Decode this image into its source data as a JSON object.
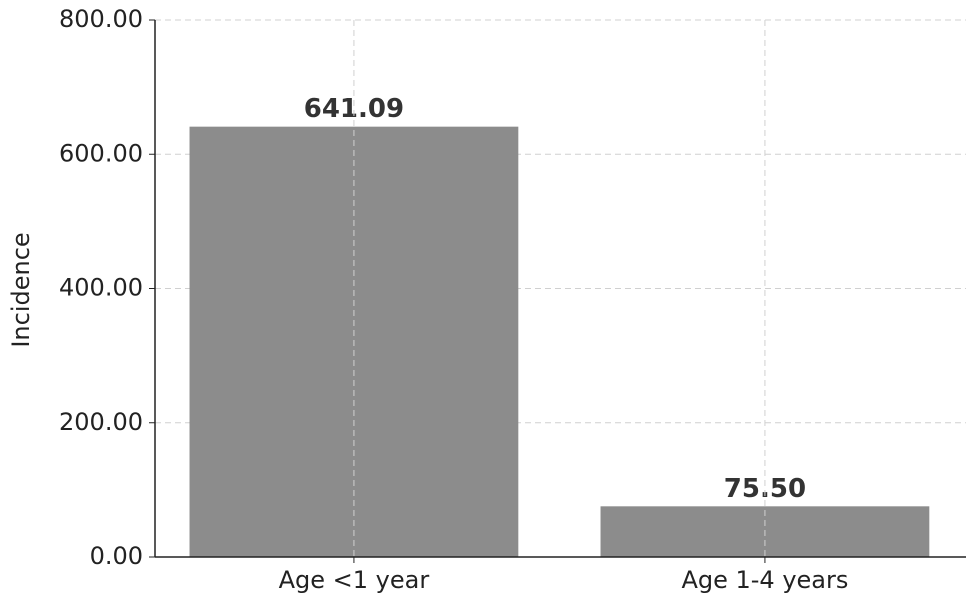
{
  "chart_data": {
    "type": "bar",
    "y_label": "Incidence",
    "categories": [
      "Age <1 year",
      "Age 1-4 years"
    ],
    "values": [
      641.09,
      75.5
    ],
    "value_labels": [
      "641.09",
      "75.50"
    ],
    "color": "#8c8c8c",
    "ylim": [
      0,
      800
    ],
    "yticks": [
      {
        "value": 0,
        "label": "0.00"
      },
      {
        "value": 200,
        "label": "200.00"
      },
      {
        "value": 400,
        "label": "400.00"
      },
      {
        "value": 600,
        "label": "600.00"
      },
      {
        "value": 800,
        "label": "800.00"
      }
    ],
    "grid": true
  }
}
